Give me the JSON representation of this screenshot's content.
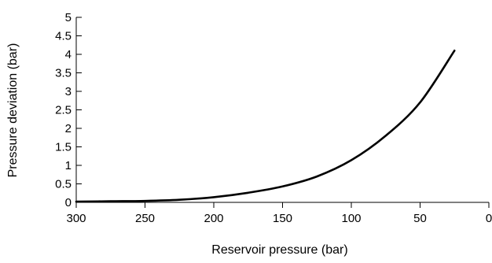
{
  "chart_data": {
    "type": "line",
    "title": "",
    "xlabel": "Reservoir pressure (bar)",
    "ylabel": "Pressure deviation (bar)",
    "x_reversed": true,
    "xlim": [
      300,
      0
    ],
    "ylim": [
      0,
      5
    ],
    "grid": false,
    "legend": "none",
    "x_ticks": [
      {
        "value": 300,
        "label": "300"
      },
      {
        "value": 250,
        "label": "250"
      },
      {
        "value": 200,
        "label": "200"
      },
      {
        "value": 150,
        "label": "150"
      },
      {
        "value": 100,
        "label": "100"
      },
      {
        "value": 50,
        "label": "50"
      },
      {
        "value": 0,
        "label": "0"
      }
    ],
    "y_ticks": [
      {
        "value": 0,
        "label": "0"
      },
      {
        "value": 0.5,
        "label": "0.5"
      },
      {
        "value": 1,
        "label": "1"
      },
      {
        "value": 1.5,
        "label": "1.5"
      },
      {
        "value": 2,
        "label": "2"
      },
      {
        "value": 2.5,
        "label": "2.5"
      },
      {
        "value": 3,
        "label": "3"
      },
      {
        "value": 3.5,
        "label": "3.5"
      },
      {
        "value": 4,
        "label": "4"
      },
      {
        "value": 4.5,
        "label": "4.5"
      },
      {
        "value": 5,
        "label": "5"
      }
    ],
    "series": [
      {
        "color": "#000000",
        "points": [
          {
            "x": 300,
            "y": 0.02
          },
          {
            "x": 275,
            "y": 0.03
          },
          {
            "x": 250,
            "y": 0.04
          },
          {
            "x": 225,
            "y": 0.07
          },
          {
            "x": 200,
            "y": 0.14
          },
          {
            "x": 175,
            "y": 0.26
          },
          {
            "x": 150,
            "y": 0.43
          },
          {
            "x": 125,
            "y": 0.7
          },
          {
            "x": 100,
            "y": 1.14
          },
          {
            "x": 75,
            "y": 1.8
          },
          {
            "x": 50,
            "y": 2.7
          },
          {
            "x": 25,
            "y": 4.1
          }
        ]
      }
    ]
  }
}
